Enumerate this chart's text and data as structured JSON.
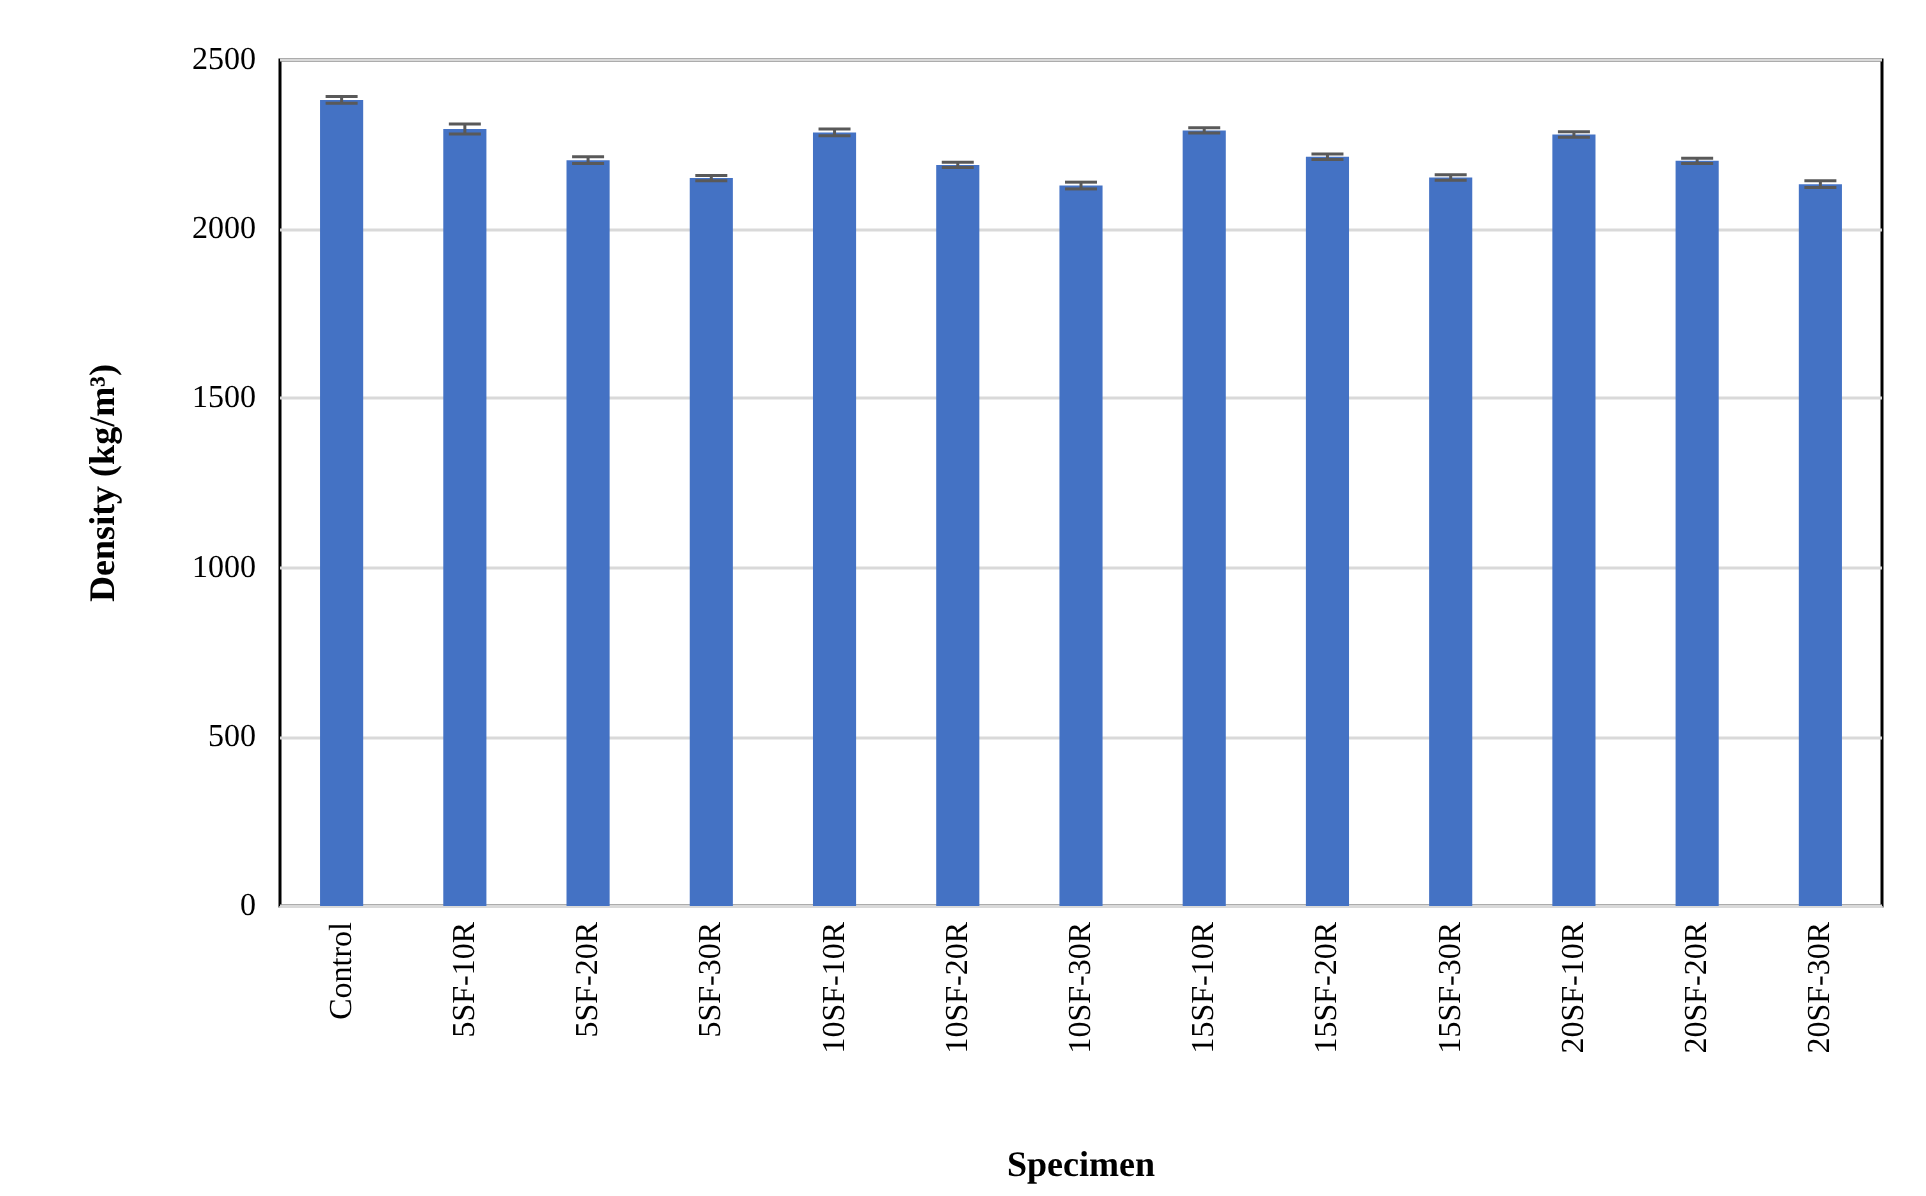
{
  "chart_data": {
    "type": "bar",
    "xlabel": "Specimen",
    "ylabel": "Density (kg/m³)",
    "categories": [
      "Control",
      "5SF-10R",
      "5SF-20R",
      "5SF-30R",
      "10SF-10R",
      "10SF-20R",
      "10SF-30R",
      "15SF-10R",
      "15SF-20R",
      "15SF-30R",
      "20SF-10R",
      "20SF-20R",
      "20SF-30R"
    ],
    "values": [
      2382,
      2296,
      2204,
      2151,
      2286,
      2190,
      2129,
      2292,
      2214,
      2153,
      2280,
      2202,
      2133
    ],
    "errors": [
      10,
      15,
      10,
      8,
      10,
      8,
      10,
      8,
      8,
      8,
      8,
      8,
      10
    ],
    "color": "#4472c4",
    "ylim": [
      0,
      2500
    ],
    "yticks": [
      0,
      500,
      1000,
      1500,
      2000,
      2500
    ],
    "grid": "y"
  }
}
